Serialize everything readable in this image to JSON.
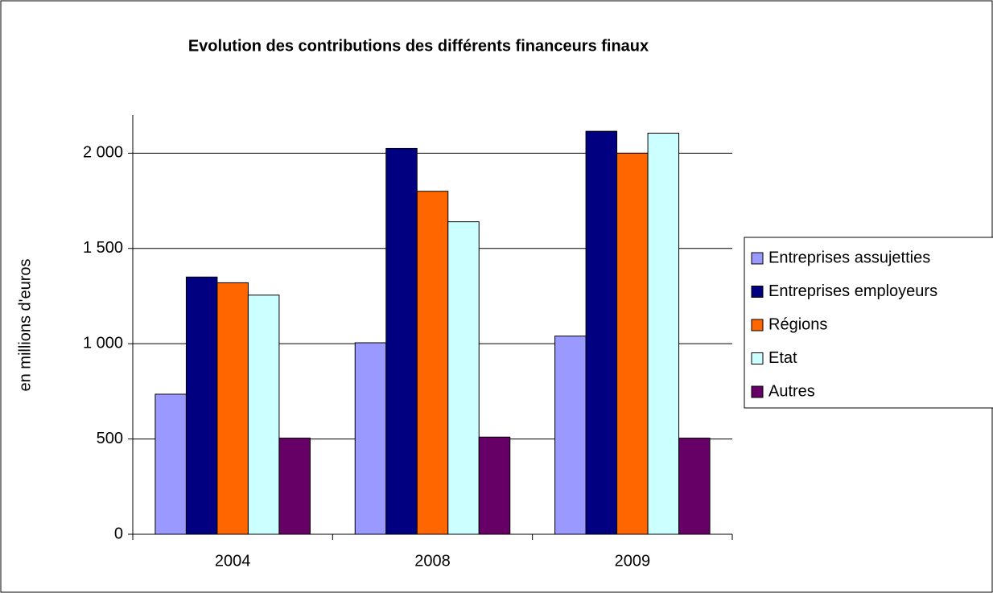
{
  "chart_data": {
    "type": "bar",
    "title": "Evolution des contributions des différents financeurs finaux",
    "y_label": "en millions d'euros",
    "categories": [
      "2004",
      "2008",
      "2009"
    ],
    "series": [
      {
        "name": "Entreprises assujetties",
        "color": "#9999ff",
        "values": [
          735,
          1005,
          1040
        ]
      },
      {
        "name": "Entreprises employeurs",
        "color": "#000080",
        "values": [
          1350,
          2025,
          2115
        ]
      },
      {
        "name": "Régions",
        "color": "#ff6600",
        "values": [
          1320,
          1800,
          2000
        ]
      },
      {
        "name": "Etat",
        "color": "#ccffff",
        "values": [
          1255,
          1640,
          2105
        ]
      },
      {
        "name": "Autres",
        "color": "#660066",
        "values": [
          505,
          510,
          505
        ]
      }
    ],
    "ylim": [
      0,
      2200
    ],
    "yticks": [
      0,
      500,
      {
        "value": 1000,
        "label": "1 000"
      },
      {
        "value": 1500,
        "label": "1 500"
      },
      {
        "value": 2000,
        "label": "2 000"
      }
    ],
    "grid": true,
    "legend": "right"
  }
}
